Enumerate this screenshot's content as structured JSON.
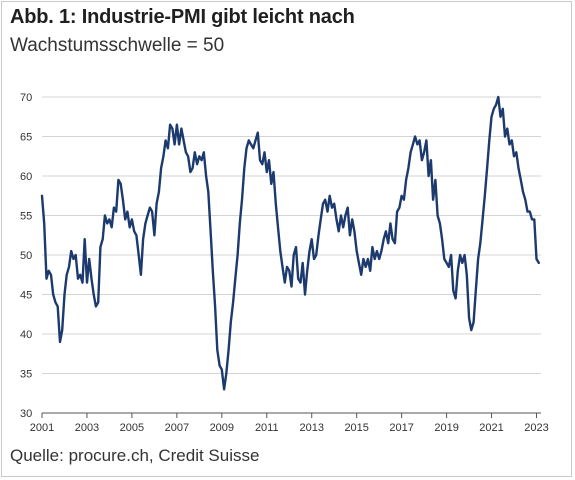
{
  "header": {
    "title": "Abb. 1: Industrie-PMI gibt leicht nach",
    "subtitle": "Wachstumsschwelle = 50"
  },
  "footer": {
    "source": "Quelle: procure.ch, Credit Suisse"
  },
  "colors": {
    "line": "#1c3a6e",
    "grid": "#d4d4d4",
    "axis": "#555555"
  },
  "chart_data": {
    "type": "line",
    "title": "Abb. 1: Industrie-PMI gibt leicht nach",
    "subtitle": "Wachstumsschwelle = 50",
    "xlabel": "",
    "ylabel": "",
    "xlim": [
      2001,
      2023.2
    ],
    "ylim": [
      30,
      70
    ],
    "yticks": [
      30,
      35,
      40,
      45,
      50,
      55,
      60,
      65,
      70
    ],
    "xticks": [
      "2001",
      "2003",
      "2005",
      "2007",
      "2009",
      "2011",
      "2013",
      "2015",
      "2017",
      "2019",
      "2021",
      "2023"
    ],
    "grid": "horizontal",
    "legend": "none",
    "series": [
      {
        "x": [
          2001.0,
          2001.1,
          2001.2,
          2001.3,
          2001.4,
          2001.5,
          2001.6,
          2001.7,
          2001.8,
          2001.9,
          2002.0,
          2002.1,
          2002.2,
          2002.3,
          2002.4,
          2002.5,
          2002.6,
          2002.7,
          2002.8,
          2002.9,
          2003.0,
          2003.1,
          2003.2,
          2003.3,
          2003.4,
          2003.5,
          2003.6,
          2003.7,
          2003.8,
          2003.9,
          2004.0,
          2004.1,
          2004.2,
          2004.3,
          2004.4,
          2004.5,
          2004.6,
          2004.7,
          2004.8,
          2004.9,
          2005.0,
          2005.1,
          2005.2,
          2005.3,
          2005.4,
          2005.5,
          2005.6,
          2005.7,
          2005.8,
          2005.9,
          2006.0,
          2006.1,
          2006.2,
          2006.3,
          2006.4,
          2006.5,
          2006.6,
          2006.7,
          2006.8,
          2006.9,
          2007.0,
          2007.1,
          2007.2,
          2007.3,
          2007.4,
          2007.5,
          2007.6,
          2007.7,
          2007.8,
          2007.9,
          2008.0,
          2008.1,
          2008.2,
          2008.3,
          2008.4,
          2008.5,
          2008.6,
          2008.7,
          2008.8,
          2008.9,
          2009.0,
          2009.1,
          2009.2,
          2009.3,
          2009.4,
          2009.5,
          2009.6,
          2009.7,
          2009.8,
          2009.9,
          2010.0,
          2010.1,
          2010.2,
          2010.3,
          2010.4,
          2010.5,
          2010.6,
          2010.7,
          2010.8,
          2010.9,
          2011.0,
          2011.1,
          2011.2,
          2011.3,
          2011.4,
          2011.5,
          2011.6,
          2011.7,
          2011.8,
          2011.9,
          2012.0,
          2012.1,
          2012.2,
          2012.3,
          2012.4,
          2012.5,
          2012.6,
          2012.7,
          2012.8,
          2012.9,
          2013.0,
          2013.1,
          2013.2,
          2013.3,
          2013.4,
          2013.5,
          2013.6,
          2013.7,
          2013.8,
          2013.9,
          2014.0,
          2014.1,
          2014.2,
          2014.3,
          2014.4,
          2014.5,
          2014.6,
          2014.7,
          2014.8,
          2014.9,
          2015.0,
          2015.1,
          2015.2,
          2015.3,
          2015.4,
          2015.5,
          2015.6,
          2015.7,
          2015.8,
          2015.9,
          2016.0,
          2016.1,
          2016.2,
          2016.3,
          2016.4,
          2016.5,
          2016.6,
          2016.7,
          2016.8,
          2016.9,
          2017.0,
          2017.1,
          2017.2,
          2017.3,
          2017.4,
          2017.5,
          2017.6,
          2017.7,
          2017.8,
          2017.9,
          2018.0,
          2018.1,
          2018.2,
          2018.3,
          2018.4,
          2018.5,
          2018.6,
          2018.7,
          2018.8,
          2018.9,
          2019.0,
          2019.1,
          2019.2,
          2019.3,
          2019.4,
          2019.5,
          2019.6,
          2019.7,
          2019.8,
          2019.9,
          2020.0,
          2020.1,
          2020.2,
          2020.3,
          2020.4,
          2020.5,
          2020.6,
          2020.7,
          2020.8,
          2020.9,
          2021.0,
          2021.1,
          2021.2,
          2021.3,
          2021.4,
          2021.5,
          2021.6,
          2021.7,
          2021.8,
          2021.9,
          2022.0,
          2022.1,
          2022.2,
          2022.3,
          2022.4,
          2022.5,
          2022.6,
          2022.7,
          2022.8,
          2022.9,
          2023.0,
          2023.1
        ],
        "y": [
          57.5,
          54.0,
          47.0,
          48.0,
          47.5,
          45.0,
          44.0,
          43.5,
          39.0,
          40.5,
          45.0,
          47.5,
          48.5,
          50.5,
          49.5,
          50.0,
          47.0,
          47.5,
          46.5,
          52.0,
          46.5,
          49.5,
          47.0,
          45.0,
          43.5,
          44.0,
          51.0,
          52.0,
          55.0,
          54.0,
          54.5,
          53.5,
          56.0,
          55.5,
          59.5,
          59.0,
          57.0,
          54.5,
          55.5,
          53.5,
          54.5,
          53.0,
          52.5,
          50.0,
          47.5,
          52.0,
          54.0,
          55.0,
          56.0,
          55.5,
          52.5,
          56.5,
          58.0,
          61.0,
          62.5,
          64.5,
          63.5,
          66.5,
          66.0,
          64.0,
          66.5,
          64.0,
          66.0,
          64.5,
          63.0,
          62.5,
          60.5,
          61.0,
          63.0,
          61.5,
          62.5,
          62.0,
          63.0,
          60.0,
          58.0,
          53.0,
          48.0,
          43.5,
          38.0,
          36.0,
          35.5,
          33.0,
          35.0,
          38.0,
          41.5,
          44.0,
          47.0,
          50.0,
          54.0,
          57.0,
          61.0,
          63.5,
          64.5,
          64.0,
          63.5,
          64.5,
          65.5,
          62.0,
          61.5,
          63.0,
          60.5,
          62.0,
          59.0,
          60.5,
          56.5,
          53.5,
          50.5,
          48.5,
          46.5,
          48.5,
          48.0,
          46.0,
          50.0,
          51.0,
          47.0,
          46.5,
          49.0,
          45.0,
          48.0,
          50.5,
          52.0,
          49.5,
          50.0,
          52.5,
          54.5,
          56.5,
          57.0,
          55.5,
          57.5,
          56.0,
          56.5,
          54.5,
          53.0,
          55.0,
          53.5,
          55.0,
          56.0,
          52.5,
          54.5,
          53.0,
          50.5,
          49.0,
          47.5,
          49.5,
          48.5,
          49.5,
          48.0,
          51.0,
          49.5,
          50.5,
          49.5,
          50.5,
          52.0,
          53.0,
          51.5,
          54.0,
          52.0,
          51.5,
          55.5,
          56.0,
          57.5,
          57.0,
          59.5,
          61.0,
          63.0,
          64.0,
          65.0,
          64.0,
          64.5,
          62.0,
          63.0,
          64.5,
          60.0,
          62.0,
          57.0,
          59.5,
          55.0,
          54.0,
          52.0,
          49.5,
          49.0,
          48.5,
          50.0,
          45.5,
          44.5,
          48.0,
          50.0,
          49.0,
          50.0,
          47.5,
          42.0,
          40.5,
          41.5,
          45.5,
          49.5,
          51.5,
          54.5,
          57.5,
          61.0,
          64.5,
          67.5,
          68.5,
          69.0,
          70.0,
          67.5,
          68.5,
          65.0,
          66.0,
          64.0,
          64.5,
          62.5,
          63.0,
          61.0,
          59.5,
          58.0,
          57.0,
          55.5,
          55.5,
          54.5,
          54.5,
          49.5,
          49.0
        ]
      }
    ]
  }
}
